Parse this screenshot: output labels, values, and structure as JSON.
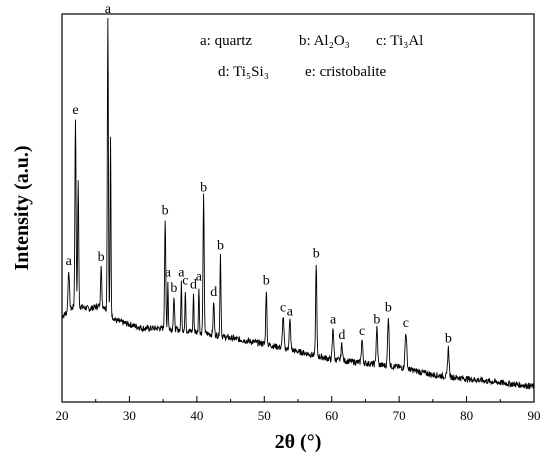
{
  "chart_data": {
    "type": "line",
    "title": "",
    "xlabel": "2θ (°)",
    "ylabel": "Intensity (a.u.)",
    "xlim": [
      20,
      90
    ],
    "x_ticks": [
      "20",
      "30",
      "40",
      "50",
      "60",
      "70",
      "80",
      "90"
    ],
    "x_tick_values": [
      20,
      30,
      40,
      50,
      60,
      70,
      80,
      90
    ],
    "y_ticks": [],
    "ylim": [
      0,
      100
    ],
    "grid": false,
    "legend": {
      "placement": "top-center",
      "rows": [
        [
          "a: quartz",
          "b: Al₂O₃",
          "c: Ti₃Al"
        ],
        [
          "d: Ti₅Si₃",
          "e: cristobalite"
        ]
      ]
    },
    "baseline": [
      [
        20,
        22
      ],
      [
        22,
        25
      ],
      [
        24,
        24
      ],
      [
        26,
        25
      ],
      [
        28,
        21
      ],
      [
        30,
        20
      ],
      [
        32,
        19
      ],
      [
        35,
        19
      ],
      [
        38,
        18.5
      ],
      [
        40,
        18
      ],
      [
        42,
        17.5
      ],
      [
        45,
        16.5
      ],
      [
        50,
        15
      ],
      [
        55,
        13
      ],
      [
        60,
        11
      ],
      [
        65,
        10
      ],
      [
        70,
        9
      ],
      [
        75,
        7
      ],
      [
        80,
        6
      ],
      [
        85,
        5
      ],
      [
        90,
        4
      ]
    ],
    "peaks": [
      {
        "x": 21.0,
        "y": 34,
        "w": 0.25,
        "label": "a"
      },
      {
        "x": 22.0,
        "y": 73,
        "w": 0.2,
        "label": "e"
      },
      {
        "x": 22.4,
        "y": 57,
        "w": 0.18,
        "label": ""
      },
      {
        "x": 25.8,
        "y": 35,
        "w": 0.2,
        "label": "b"
      },
      {
        "x": 26.8,
        "y": 99,
        "w": 0.18,
        "label": "a"
      },
      {
        "x": 27.2,
        "y": 68,
        "w": 0.15,
        "label": ""
      },
      {
        "x": 35.3,
        "y": 47,
        "w": 0.2,
        "label": "b"
      },
      {
        "x": 35.7,
        "y": 31,
        "w": 0.15,
        "label": "a"
      },
      {
        "x": 36.6,
        "y": 27,
        "w": 0.2,
        "label": "b"
      },
      {
        "x": 37.7,
        "y": 31,
        "w": 0.15,
        "label": "a"
      },
      {
        "x": 38.3,
        "y": 29,
        "w": 0.15,
        "label": "c"
      },
      {
        "x": 39.5,
        "y": 28,
        "w": 0.15,
        "label": "d"
      },
      {
        "x": 40.3,
        "y": 30,
        "w": 0.15,
        "label": "a"
      },
      {
        "x": 41.0,
        "y": 53,
        "w": 0.2,
        "label": "b"
      },
      {
        "x": 42.5,
        "y": 26,
        "w": 0.2,
        "label": "d"
      },
      {
        "x": 43.5,
        "y": 38,
        "w": 0.18,
        "label": "b"
      },
      {
        "x": 50.3,
        "y": 29,
        "w": 0.2,
        "label": "b"
      },
      {
        "x": 52.8,
        "y": 22,
        "w": 0.25,
        "label": "c"
      },
      {
        "x": 53.8,
        "y": 21,
        "w": 0.25,
        "label": "a"
      },
      {
        "x": 57.7,
        "y": 36,
        "w": 0.2,
        "label": "b"
      },
      {
        "x": 60.2,
        "y": 19,
        "w": 0.25,
        "label": "a"
      },
      {
        "x": 61.5,
        "y": 15,
        "w": 0.25,
        "label": "d"
      },
      {
        "x": 64.5,
        "y": 16,
        "w": 0.25,
        "label": "c"
      },
      {
        "x": 66.7,
        "y": 19,
        "w": 0.25,
        "label": "b"
      },
      {
        "x": 68.4,
        "y": 22,
        "w": 0.25,
        "label": "b"
      },
      {
        "x": 71.0,
        "y": 18,
        "w": 0.3,
        "label": "c"
      },
      {
        "x": 77.3,
        "y": 14,
        "w": 0.25,
        "label": "b"
      }
    ]
  }
}
